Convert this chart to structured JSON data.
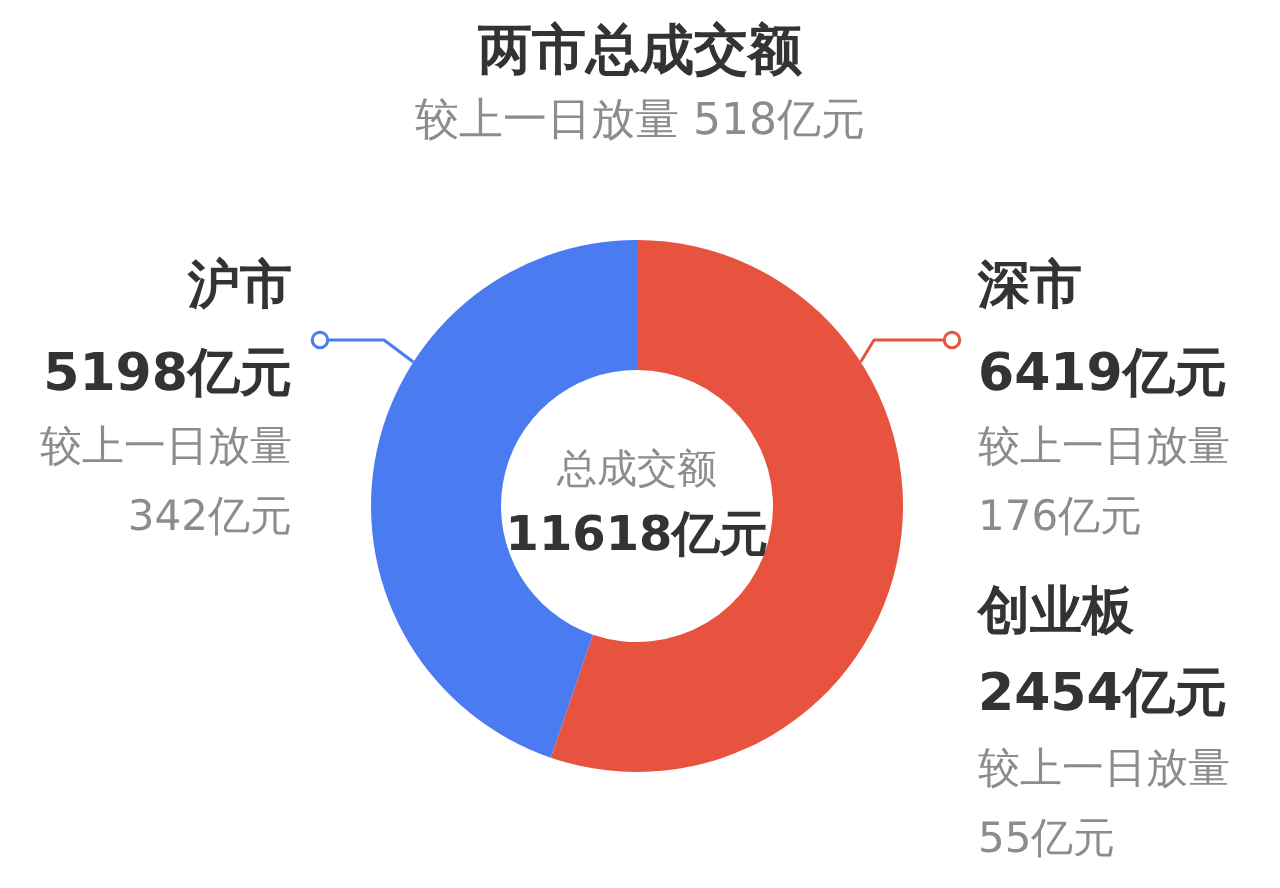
{
  "chart_data": {
    "type": "donut",
    "title": "两市总成交额",
    "subtitle": "较上一日放量 518亿元",
    "categories": [
      "深市",
      "沪市"
    ],
    "values": [
      6419,
      5198
    ],
    "colors": [
      "#e8533f",
      "#4a7bf0"
    ],
    "value_labels": [
      "6419亿元",
      "5198亿元"
    ],
    "annotations": [
      "总成交额",
      "11618亿元",
      "较上一日放量",
      "176亿元",
      "较上一日放量",
      "342亿元",
      "创业板",
      "2454亿元",
      "较上一日放量",
      "55亿元"
    ]
  }
}
